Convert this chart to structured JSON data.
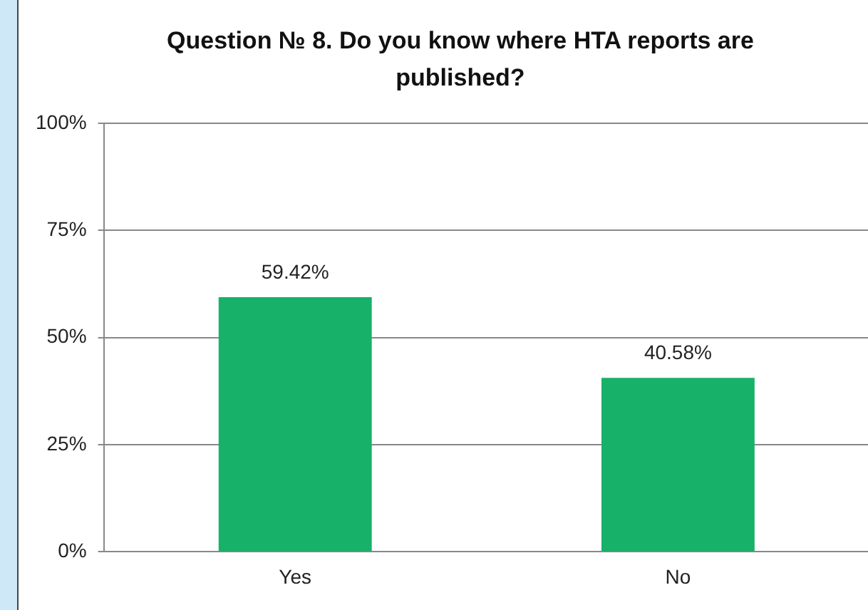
{
  "chart_data": {
    "type": "bar",
    "title": "Question № 8. Do you know where HTA reports are published?",
    "categories": [
      "Yes",
      "No"
    ],
    "values": [
      59.42,
      40.58
    ],
    "value_labels": [
      "59.42%",
      "40.58%"
    ],
    "color": "#17b169",
    "ylim": [
      0,
      100
    ],
    "yticks": [
      {
        "value": 0,
        "label": "0%"
      },
      {
        "value": 25,
        "label": "25%"
      },
      {
        "value": 50,
        "label": "50%"
      },
      {
        "value": 75,
        "label": "75%"
      },
      {
        "value": 100,
        "label": "100%"
      }
    ],
    "grid": "y",
    "legend": false
  }
}
